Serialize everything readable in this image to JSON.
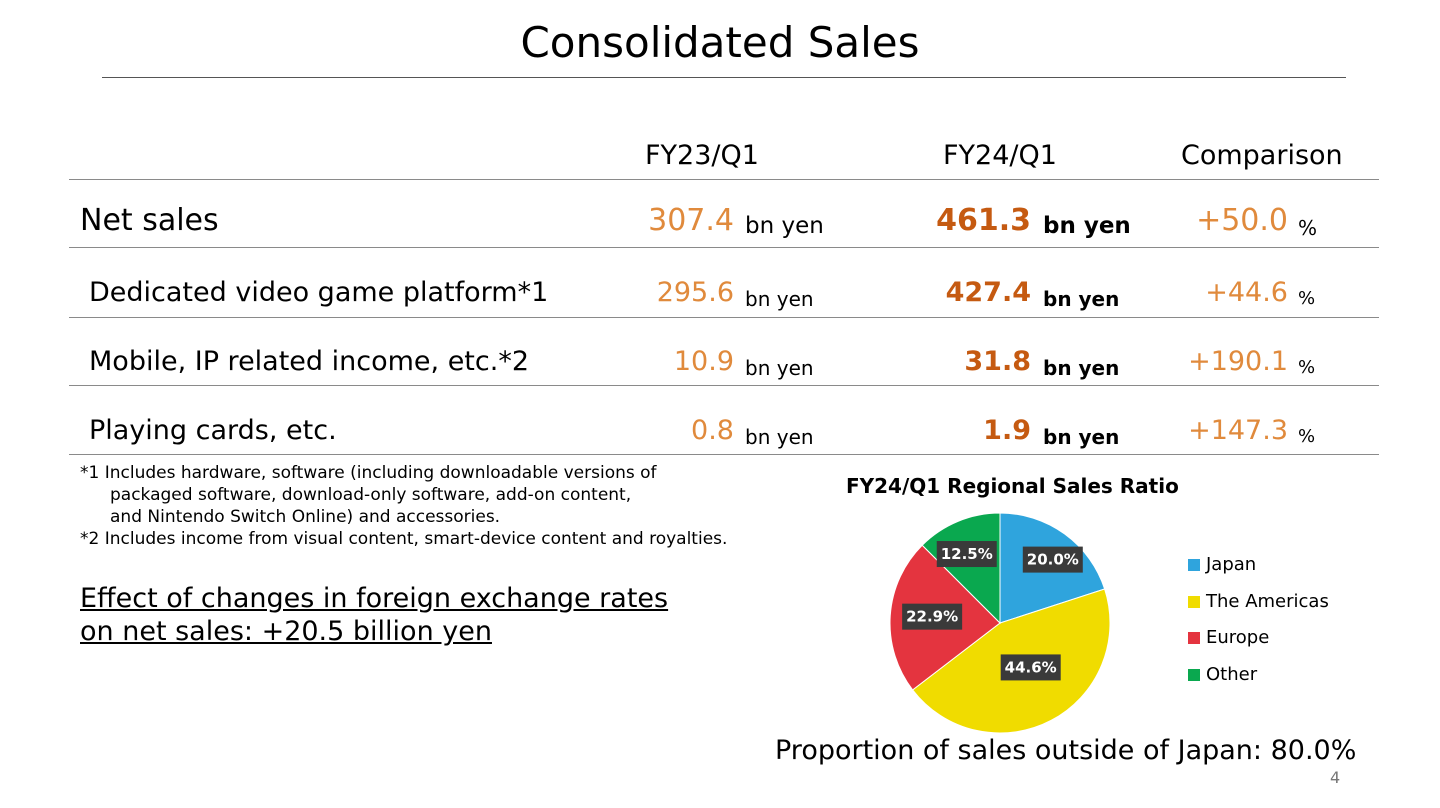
{
  "title": "Consolidated Sales",
  "table": {
    "headers": [
      "FY23/Q1",
      "FY24/Q1",
      "Comparison"
    ],
    "rows": [
      {
        "label": "Net sales",
        "fy23": "307.4",
        "fy23_unit": "bn yen",
        "fy24": "461.3",
        "fy24_unit": "bn yen",
        "comparison": "+50.0",
        "comparison_unit": "%"
      },
      {
        "label": "Dedicated video game platform*1",
        "fy23": "295.6",
        "fy23_unit": "bn yen",
        "fy24": "427.4",
        "fy24_unit": "bn yen",
        "comparison": "+44.6",
        "comparison_unit": "%"
      },
      {
        "label": "Mobile, IP related income, etc.*2",
        "fy23": "10.9",
        "fy23_unit": "bn yen",
        "fy24": "31.8",
        "fy24_unit": "bn yen",
        "comparison": "+190.1",
        "comparison_unit": "%"
      },
      {
        "label": "Playing cards, etc.",
        "fy23": "0.8",
        "fy23_unit": "bn yen",
        "fy24": "1.9",
        "fy24_unit": "bn yen",
        "comparison": "+147.3",
        "comparison_unit": "%"
      }
    ]
  },
  "notes": [
    "*1 Includes hardware, software (including downloadable versions of",
    "packaged software, download-only software, add-on content,",
    "and Nintendo Switch Online) and accessories.",
    "*2 Includes income from visual content, smart-device content and royalties."
  ],
  "fx_effect": [
    "Effect of changes in foreign exchange rates",
    "on net sales: +20.5 billion yen"
  ],
  "chart_data": {
    "type": "pie",
    "title": "FY24/Q1 Regional Sales Ratio",
    "categories": [
      "Japan",
      "The Americas",
      "Europe",
      "Other"
    ],
    "values": [
      20.0,
      44.6,
      22.9,
      12.5
    ],
    "labels": [
      "20.0%",
      "44.6%",
      "22.9%",
      "12.5%"
    ],
    "colors": [
      "#2fa4dd",
      "#f0dc00",
      "#e4343f",
      "#0aa84f"
    ],
    "legend": "right"
  },
  "proportion": "Proportion of sales outside of Japan: 80.0%",
  "page_number": "4"
}
